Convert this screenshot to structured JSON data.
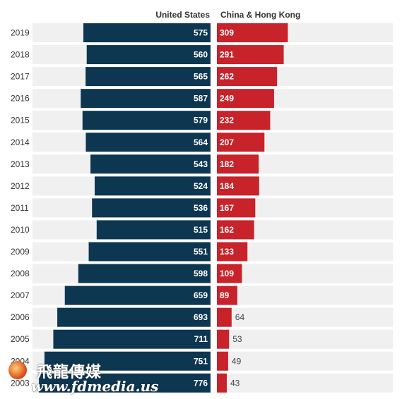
{
  "chart_data": {
    "type": "bar",
    "orientation": "horizontal-diverging",
    "title": "",
    "categories": [
      "2019",
      "2018",
      "2017",
      "2016",
      "2015",
      "2014",
      "2013",
      "2012",
      "2011",
      "2010",
      "2009",
      "2008",
      "2007",
      "2006",
      "2005",
      "2004",
      "2003"
    ],
    "series": [
      {
        "name": "United States",
        "color": "#0d3651",
        "values": [
          575,
          560,
          565,
          587,
          579,
          564,
          543,
          524,
          536,
          515,
          551,
          598,
          659,
          693,
          711,
          751,
          776
        ]
      },
      {
        "name": "China & Hong Kong",
        "color": "#c8222a",
        "values": [
          309,
          291,
          262,
          249,
          232,
          207,
          182,
          184,
          167,
          162,
          133,
          109,
          89,
          64,
          53,
          49,
          43
        ]
      }
    ],
    "grid": false,
    "legend": "top",
    "row_background": "#f0f0f0"
  },
  "watermark": {
    "logo_text": "飛龍傳媒",
    "logo_url_text": "www.fdmedia.us"
  }
}
